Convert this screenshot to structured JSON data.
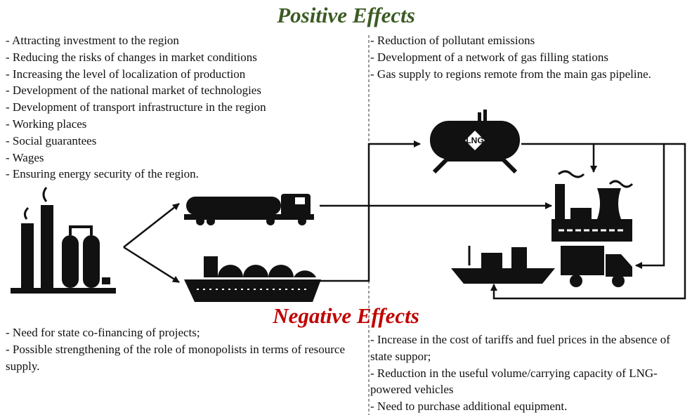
{
  "positive": {
    "title": "Positive Effects",
    "left": [
      "- Attracting investment to the region",
      "- Reducing the risks of changes in market conditions",
      "- Increasing the level of localization of production",
      "- Development of the national market of technologies",
      "- Development of transport infrastructure in the region",
      "- Working places",
      "- Social guarantees",
      "- Wages",
      "- Ensuring energy security of the region."
    ],
    "right": [
      "- Reduction of pollutant emissions",
      "- Development of a network of gas filling stations",
      "- Gas supply to regions remote from the main gas pipeline."
    ]
  },
  "lng_label": "LNG",
  "negative": {
    "title": "Negative Effects",
    "left": [
      "- Need for state co-financing of projects;",
      "- Possible strengthening of the role of monopolists in terms of resource supply."
    ],
    "right": [
      "- Increase in the cost of tariffs and fuel prices in the absence of state suppor;",
      "- Reduction in the useful volume/carrying capacity of LNG-powered vehicles",
      "- Need to purchase additional equipment."
    ]
  }
}
